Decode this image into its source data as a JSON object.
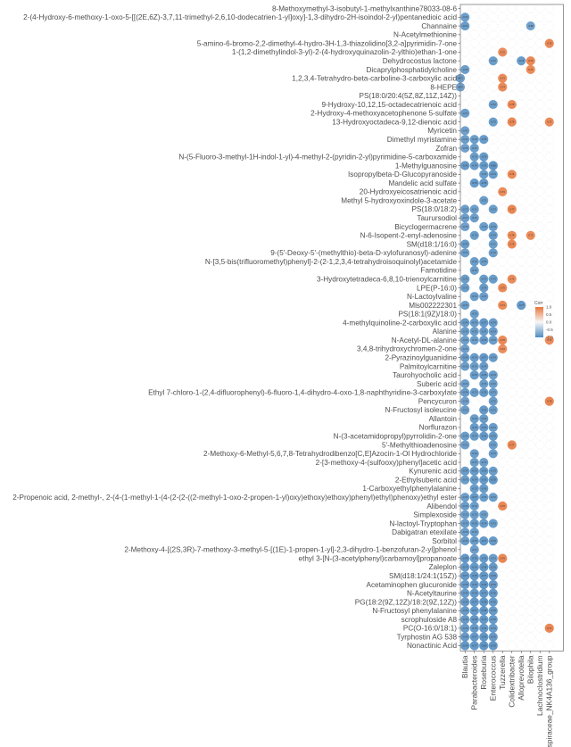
{
  "chart_data": {
    "type": "heatmap",
    "subtype": "bubble-correlation-matrix",
    "title": "",
    "xlabel": "",
    "ylabel": "",
    "grid": true,
    "legend": {
      "title": "Corr",
      "ticks": [
        1.0,
        0.5,
        0.0,
        -0.5,
        -1.0
      ],
      "tick_labels": [
        "1.0",
        "0.5",
        "0.0",
        "-0.5",
        "-1.0"
      ],
      "range": [
        -1,
        1
      ],
      "placement": "right",
      "low_color": "#4f8bc0",
      "mid_color": "#f7f7f7",
      "high_color": "#e8763b"
    },
    "columns": [
      "Blautia",
      "Parabacteroides",
      "Roseburia",
      "Enterococcus",
      "Tuzzerella",
      "Colidextribacter",
      "Alloprevotella",
      "Bilophila",
      "Lachnoclostridium",
      "Lachnospiraceae_NK4A136_group"
    ],
    "rows": [
      "8-Methoxymethyl-3-isobutyl-1-methylxanthine78033-08-6",
      "2-(4-Hydroxy-6-methoxy-1-oxo-5-[[(2E,6Z)-3,7,11-trimethyl-2,6,10-dodecatrien-1-yl]oxy]-1,3-dihydro-2H-isoindol-2-yl)pentanedioic acid",
      "Channaine",
      "N-Acetylmethionine",
      "5-amino-6-bromo-2,2-dimethyl-4-hydro-3H-1,3-thiazolidino[3,2-a]pyrimidin-7-one",
      "1-(1,2-dimethylindol-3-yl)-2-(4-hydroxyquinazolin-2-ylthio)ethan-1-one",
      "Dehydrocostus lactone",
      "Dicaprylphosphatidylcholine",
      "1,2,3,4-Tetrahydro-beta-carboline-3-carboxylic acid",
      "8-HEPE",
      "PS(18:0/20:4(5Z,8Z,11Z,14Z))",
      "9-Hydroxy-10,12,15-octadecatrienoic acid",
      "2-Hydroxy-4-methoxyacetophenone 5-sulfate",
      "13-Hydroxyoctadeca-9,12-dienoic acid",
      "Myricetin",
      "Dimethyl myristamine",
      "Zofran",
      "N-(5-Fluoro-3-methyl-1H-indol-1-yl)-4-methyl-2-(pyridin-2-yl)pyrimidine-5-carboxamide",
      "1-Methylguanosine",
      "Isopropylbeta-D-Glucopyranoside",
      "Mandelic acid sulfate",
      "20-Hydroxyeicosatrienoic acid",
      "Methyl 5-hydroxyoxindole-3-acetate",
      "PS(18:0/18:2)",
      "Taurursodiol",
      "Bicyclogermacrene",
      "N-6-Isopent-2-enyl-adenosine",
      "SM(d18:1/16:0)",
      "9-(5'-Deoxy-5'-(methylthio)-beta-D-xylofuranosyl)-adenine",
      "N-[3,5-bis(trifluoromethyl)phenyl]-2-(2-1,2,3,4-tetrahydroisoquinolyl)acetamide",
      "Famotidine",
      "3-Hydroxytetradeca-6,8,10-trienoylcarnitine",
      "LPE(P-16:0)",
      "N-Lactoylvaline",
      "Mls002222301",
      "PS(18:1(9Z)/18:0)",
      "4-methylquinoline-2-carboxylic acid",
      "Alanine",
      "N-Acetyl-DL-alanine",
      "3,4,8-trihydroxychromen-2-one",
      "2-Pyrazinoylguanidine",
      "Palmitoylcarnitine",
      "Taurohyocholic acid",
      "Suberic acid",
      "Ethyl 7-chloro-1-(2,4-difluorophenyl)-6-fluoro-1,4-dihydro-4-oxo-1,8-naphthyridine-3-carboxylate",
      "Pencycuron",
      "N-Fructosyl isoleucine",
      "Allantoin",
      "Norflurazon",
      "N-(3-acetamidopropyl)pyrrolidin-2-one",
      "5'-Methylthioadenosine",
      "2-Methoxy-6-Methyl-5,6,7,8-Tetrahydrodibenzo[C,E]Azocin-1-Ol Hydrochloride",
      "2-[3-methoxy-4-(sulfooxy)phenyl]acetic acid",
      "Kynurenic acid",
      "2-Ethylsuberic acid",
      "1-Carboxyethylphenylalanine",
      "2-Propenoic acid, 2-methyl-, 2-(4-(1-methyl-1-(4-(2-(2-((2-methyl-1-oxo-2-propen-1-yl)oxy)ethoxy)ethoxy)phenyl)ethyl)phenoxy)ethyl ester",
      "Alibendol",
      "Simplexoside",
      "N-lactoyl-Tryptophan",
      "Dabigatran etexilate",
      "Sorbitol",
      "2-Methoxy-4-[(2S,3R)-7-methoxy-3-methyl-5-[(1E)-1-propen-1-yl]-2,3-dihydro-1-benzofuran-2-yl]phenol",
      "ethyl 3-[N-(3-acetylphenyl)carbamoyl]propanoate",
      "Zaleplon",
      "SM(d18:1/24:1(15Z))",
      "Acetaminophen glucuronide",
      "N-Acetyltaurine",
      "PG(18:2(9Z,12Z)/18:2(9Z,12Z))",
      "N-Fructosyl phenylalanine",
      "scrophuloside A8",
      "PC(O-16:0/18:1)",
      "Tyrphostin AG 538",
      "Nonactinic Acid"
    ],
    "cells": [
      [
        1,
        0,
        -0.72
      ],
      [
        2,
        0,
        -0.74
      ],
      [
        2,
        7,
        -0.68
      ],
      [
        4,
        9,
        0.75
      ],
      [
        5,
        4,
        0.72
      ],
      [
        6,
        3,
        -0.72
      ],
      [
        6,
        6,
        -0.74
      ],
      [
        6,
        7,
        0.76
      ],
      [
        7,
        0,
        -0.72
      ],
      [
        7,
        7,
        0.74
      ],
      [
        8,
        -1,
        -0.71
      ],
      [
        8,
        4,
        0.73
      ],
      [
        9,
        -1,
        -0.7
      ],
      [
        9,
        4,
        0.74
      ],
      [
        11,
        3,
        -0.72
      ],
      [
        11,
        5,
        0.75
      ],
      [
        12,
        0,
        -0.71
      ],
      [
        13,
        3,
        -0.73
      ],
      [
        13,
        5,
        0.76
      ],
      [
        13,
        9,
        0.73
      ],
      [
        14,
        0,
        -0.7
      ],
      [
        15,
        0,
        -0.72
      ],
      [
        15,
        1,
        -0.73
      ],
      [
        15,
        2,
        -0.75
      ],
      [
        16,
        0,
        -0.7
      ],
      [
        16,
        1,
        -0.72
      ],
      [
        17,
        1,
        -0.73
      ],
      [
        17,
        2,
        -0.76
      ],
      [
        18,
        0,
        -0.76
      ],
      [
        18,
        1,
        -0.74
      ],
      [
        18,
        2,
        -0.75
      ],
      [
        18,
        3,
        -0.8
      ],
      [
        19,
        2,
        -0.73
      ],
      [
        19,
        3,
        -0.74
      ],
      [
        19,
        5,
        0.74
      ],
      [
        20,
        1,
        -0.75
      ],
      [
        20,
        2,
        -0.76
      ],
      [
        21,
        4,
        0.73
      ],
      [
        22,
        2,
        -0.72
      ],
      [
        23,
        0,
        -0.72
      ],
      [
        23,
        1,
        -0.71
      ],
      [
        23,
        3,
        -0.73
      ],
      [
        23,
        5,
        0.77
      ],
      [
        24,
        0,
        -0.71
      ],
      [
        24,
        1,
        -0.72
      ],
      [
        25,
        0,
        -0.7
      ],
      [
        25,
        2,
        -0.73
      ],
      [
        25,
        3,
        -0.74
      ],
      [
        26,
        1,
        -0.73
      ],
      [
        26,
        3,
        -0.74
      ],
      [
        26,
        5,
        0.74
      ],
      [
        26,
        7,
        0.72
      ],
      [
        27,
        0,
        -0.74
      ],
      [
        27,
        3,
        -0.71
      ],
      [
        27,
        5,
        0.75
      ],
      [
        28,
        0,
        -0.71
      ],
      [
        28,
        3,
        -0.73
      ],
      [
        29,
        1,
        -0.72
      ],
      [
        29,
        2,
        -0.73
      ],
      [
        30,
        1,
        -0.72
      ],
      [
        31,
        0,
        -0.73
      ],
      [
        31,
        2,
        -0.72
      ],
      [
        31,
        3,
        -0.73
      ],
      [
        31,
        5,
        0.72
      ],
      [
        32,
        0,
        -0.72
      ],
      [
        32,
        2,
        -0.74
      ],
      [
        32,
        4,
        0.75
      ],
      [
        33,
        1,
        -0.72
      ],
      [
        33,
        2,
        -0.73
      ],
      [
        34,
        0,
        -0.72
      ],
      [
        34,
        4,
        0.74
      ],
      [
        34,
        6,
        -0.77
      ],
      [
        35,
        1,
        -0.72
      ],
      [
        36,
        0,
        -0.74
      ],
      [
        36,
        1,
        -0.74
      ],
      [
        36,
        2,
        -0.77
      ],
      [
        36,
        3,
        -0.74
      ],
      [
        37,
        0,
        -0.73
      ],
      [
        37,
        1,
        -0.72
      ],
      [
        37,
        2,
        -0.73
      ],
      [
        37,
        3,
        -0.74
      ],
      [
        38,
        0,
        -0.72
      ],
      [
        38,
        1,
        -0.73
      ],
      [
        38,
        2,
        -0.76
      ],
      [
        38,
        3,
        -0.73
      ],
      [
        38,
        4,
        0.75
      ],
      [
        38,
        9,
        0.72
      ],
      [
        39,
        0,
        -0.71
      ],
      [
        39,
        4,
        0.72
      ],
      [
        40,
        0,
        -0.76
      ],
      [
        40,
        1,
        -0.74
      ],
      [
        40,
        2,
        -0.77
      ],
      [
        40,
        3,
        -0.74
      ],
      [
        41,
        0,
        -0.72
      ],
      [
        41,
        1,
        -0.73
      ],
      [
        41,
        2,
        -0.74
      ],
      [
        42,
        1,
        -0.75
      ],
      [
        42,
        2,
        -0.76
      ],
      [
        42,
        3,
        -0.73
      ],
      [
        43,
        0,
        -0.71
      ],
      [
        43,
        2,
        -0.73
      ],
      [
        43,
        3,
        -0.72
      ],
      [
        44,
        0,
        -0.74
      ],
      [
        44,
        1,
        -0.73
      ],
      [
        44,
        2,
        -0.76
      ],
      [
        44,
        3,
        -0.73
      ],
      [
        45,
        0,
        -0.7
      ],
      [
        45,
        3,
        -0.72
      ],
      [
        45,
        9,
        0.78
      ],
      [
        46,
        0,
        -0.72
      ],
      [
        46,
        2,
        -0.76
      ],
      [
        46,
        3,
        -0.73
      ],
      [
        47,
        1,
        -0.73
      ],
      [
        47,
        2,
        -0.74
      ],
      [
        48,
        1,
        -0.75
      ],
      [
        48,
        2,
        -0.76
      ],
      [
        48,
        3,
        -0.74
      ],
      [
        49,
        0,
        -0.73
      ],
      [
        49,
        1,
        -0.74
      ],
      [
        49,
        2,
        -0.76
      ],
      [
        49,
        3,
        -0.75
      ],
      [
        50,
        0,
        -0.71
      ],
      [
        50,
        3,
        -0.72
      ],
      [
        50,
        5,
        0.77
      ],
      [
        51,
        1,
        -0.72
      ],
      [
        51,
        3,
        -0.73
      ],
      [
        52,
        1,
        -0.72
      ],
      [
        52,
        2,
        -0.73
      ],
      [
        53,
        0,
        -0.74
      ],
      [
        53,
        1,
        -0.76
      ],
      [
        53,
        2,
        -0.75
      ],
      [
        53,
        3,
        -0.73
      ],
      [
        54,
        0,
        -0.73
      ],
      [
        54,
        1,
        -0.74
      ],
      [
        54,
        2,
        -0.75
      ],
      [
        54,
        3,
        -0.79
      ],
      [
        55,
        1,
        -0.73
      ],
      [
        55,
        2,
        -0.74
      ],
      [
        56,
        0,
        -0.72
      ],
      [
        56,
        1,
        -0.77
      ],
      [
        56,
        2,
        -0.73
      ],
      [
        56,
        3,
        -0.72
      ],
      [
        57,
        0,
        -0.74
      ],
      [
        57,
        1,
        -0.73
      ],
      [
        57,
        4,
        0.76
      ],
      [
        58,
        0,
        -0.71
      ],
      [
        58,
        1,
        -0.73
      ],
      [
        58,
        2,
        -0.72
      ],
      [
        59,
        0,
        -0.73
      ],
      [
        59,
        1,
        -0.75
      ],
      [
        59,
        2,
        -0.74
      ],
      [
        59,
        3,
        -0.73
      ],
      [
        60,
        0,
        -0.72
      ],
      [
        60,
        1,
        -0.73
      ],
      [
        61,
        0,
        -0.74
      ],
      [
        61,
        1,
        -0.75
      ],
      [
        61,
        2,
        -0.77
      ],
      [
        61,
        3,
        -0.76
      ],
      [
        62,
        1,
        -0.71
      ],
      [
        63,
        0,
        -0.79
      ],
      [
        63,
        1,
        -0.76
      ],
      [
        63,
        2,
        -0.75
      ],
      [
        63,
        3,
        -0.73
      ],
      [
        63,
        4,
        0.76
      ],
      [
        64,
        0,
        -0.77
      ],
      [
        64,
        1,
        -0.76
      ],
      [
        64,
        2,
        -0.78
      ],
      [
        64,
        3,
        -0.75
      ],
      [
        65,
        0,
        -0.77
      ],
      [
        65,
        1,
        -0.78
      ],
      [
        65,
        2,
        -0.77
      ],
      [
        65,
        3,
        -0.76
      ],
      [
        66,
        0,
        -0.75
      ],
      [
        66,
        1,
        -0.76
      ],
      [
        66,
        2,
        -0.79
      ],
      [
        66,
        3,
        -0.76
      ],
      [
        67,
        0,
        -0.74
      ],
      [
        67,
        1,
        -0.76
      ],
      [
        67,
        2,
        -0.77
      ],
      [
        67,
        3,
        -0.76
      ],
      [
        68,
        0,
        -0.76
      ],
      [
        68,
        1,
        -0.77
      ],
      [
        68,
        2,
        -0.78
      ],
      [
        68,
        3,
        -0.75
      ],
      [
        69,
        0,
        -0.75
      ],
      [
        69,
        1,
        -0.77
      ],
      [
        69,
        2,
        -0.78
      ],
      [
        69,
        3,
        -0.76
      ],
      [
        70,
        0,
        -0.76
      ],
      [
        70,
        1,
        -0.78
      ],
      [
        70,
        2,
        -0.77
      ],
      [
        70,
        3,
        -0.75
      ],
      [
        71,
        0,
        -0.74
      ],
      [
        71,
        1,
        -0.75
      ],
      [
        71,
        2,
        -0.76
      ],
      [
        71,
        3,
        -0.74
      ],
      [
        71,
        9,
        0.77
      ],
      [
        72,
        0,
        -0.76
      ],
      [
        72,
        1,
        -0.77
      ],
      [
        72,
        2,
        -0.78
      ],
      [
        72,
        3,
        -0.76
      ],
      [
        73,
        0,
        -0.78
      ],
      [
        73,
        1,
        -0.77
      ],
      [
        73,
        2,
        -0.8
      ],
      [
        73,
        3,
        -0.78
      ]
    ],
    "cell_note": "cells are [row_index, column_index, correlation]; column_index -1 denotes a circle drawn on the left frame edge"
  }
}
